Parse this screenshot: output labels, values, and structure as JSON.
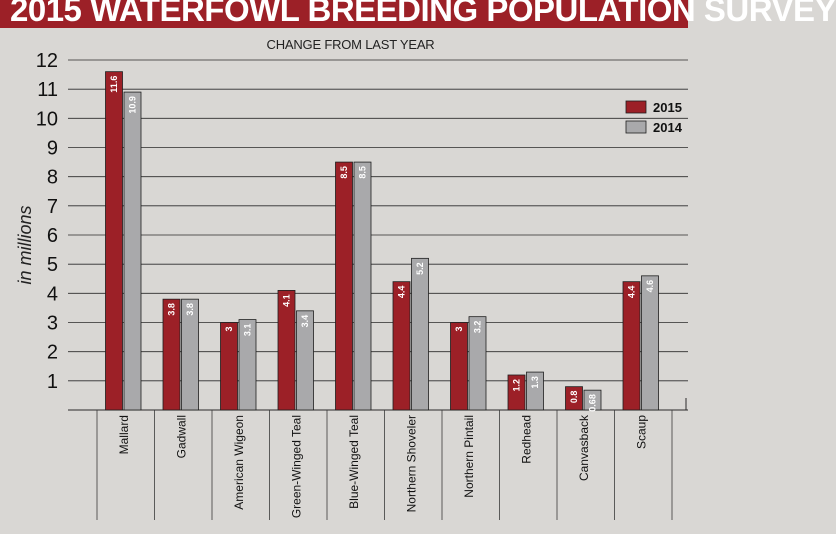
{
  "header": {
    "title": "2015 WATERFOWL BREEDING POPULATION SURVEY",
    "subtitle": "CHANGE FROM LAST YEAR"
  },
  "colors": {
    "series_2015": "#9c2027",
    "series_2014": "#a9a9ab",
    "title_bg": "#9c2027",
    "background": "#d9d7d4"
  },
  "chart_data": {
    "type": "bar",
    "title": "2015 WATERFOWL BREEDING POPULATION SURVEY",
    "subtitle": "CHANGE FROM LAST YEAR",
    "ylabel": "in millions",
    "xlabel": "",
    "ylim": [
      0,
      12
    ],
    "yticks": [
      "1",
      "2",
      "3",
      "4",
      "5",
      "6",
      "7",
      "8",
      "9",
      "10",
      "11",
      "12"
    ],
    "grid": true,
    "legend": "top-right",
    "categories": [
      "Mallard",
      "Gadwall",
      "American Wigeon",
      "Green-Winged Teal",
      "Blue-Winged Teal",
      "Northern Shoveler",
      "Northern Pintail",
      "Redhead",
      "Canvasback",
      "Scaup"
    ],
    "series": [
      {
        "name": "2015",
        "values": [
          11.6,
          3.8,
          3,
          4.1,
          8.5,
          4.4,
          3,
          1.2,
          0.8,
          4.4
        ],
        "labels": [
          "11.6",
          "3.8",
          "3",
          "4.1",
          "8.5",
          "4.4",
          "3",
          "1.2",
          "0.8",
          "4.4"
        ]
      },
      {
        "name": "2014",
        "values": [
          10.9,
          3.8,
          3.1,
          3.4,
          8.5,
          5.2,
          3.2,
          1.3,
          0.68,
          4.6
        ],
        "labels": [
          "10.9",
          "3.8",
          "3.1",
          "3.4",
          "8.5",
          "5.2",
          "3.2",
          "1.3",
          "0.68",
          "4.6"
        ]
      }
    ]
  }
}
